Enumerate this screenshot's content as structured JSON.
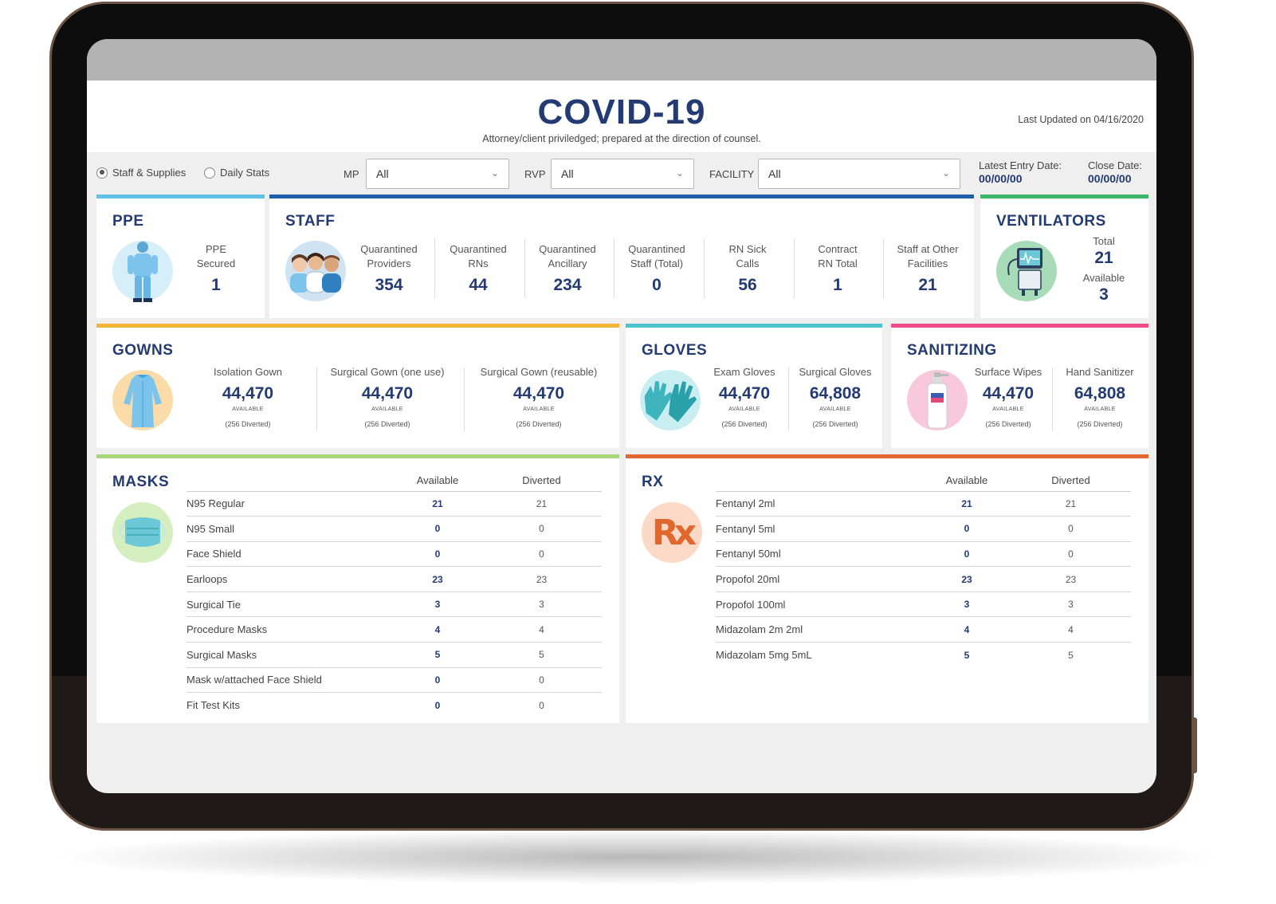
{
  "header": {
    "title": "COVID-19",
    "subtitle": "Attorney/client priviledged; prepared at the direction of counsel.",
    "last_updated": "Last Updated on 04/16/2020"
  },
  "filters": {
    "radio_staff": "Staff & Supplies",
    "radio_daily": "Daily Stats",
    "mp_label": "MP",
    "mp_value": "All",
    "rvp_label": "RVP",
    "rvp_value": "All",
    "facility_label": "FACILITY",
    "facility_value": "All",
    "latest_entry_label": "Latest Entry Date:",
    "latest_entry_value": "00/00/00",
    "close_label": "Close Date:",
    "close_value": "00/00/00"
  },
  "ppe": {
    "title": "PPE",
    "label1": "PPE",
    "label2": "Secured",
    "value": "1",
    "color": "#5fc0e8"
  },
  "staff": {
    "title": "STAFF",
    "color": "#1f5fae",
    "stats": [
      {
        "l1": "Quarantined",
        "l2": "Providers",
        "value": "354"
      },
      {
        "l1": "Quarantined",
        "l2": "RNs",
        "value": "44"
      },
      {
        "l1": "Quarantined",
        "l2": "Ancillary",
        "value": "234"
      },
      {
        "l1": "Quarantined",
        "l2": "Staff (Total)",
        "value": "0"
      },
      {
        "l1": "RN Sick",
        "l2": "Calls",
        "value": "56"
      },
      {
        "l1": "Contract",
        "l2": "RN Total",
        "value": "1"
      },
      {
        "l1": "Staff at Other",
        "l2": "Facilities",
        "value": "21"
      }
    ]
  },
  "ventilators": {
    "title": "VENTILATORS",
    "color": "#3fb56a",
    "total_label": "Total",
    "total_value": "21",
    "available_label": "Available",
    "available_value": "3"
  },
  "gowns": {
    "title": "GOWNS",
    "color": "#f2b535",
    "items": [
      {
        "label": "Isolation Gown",
        "value": "44,470",
        "available": "AVAILABLE",
        "diverted": "(256 Diverted)"
      },
      {
        "label": "Surgical Gown (one use)",
        "value": "44,470",
        "available": "AVAILABLE",
        "diverted": "(256 Diverted)"
      },
      {
        "label": "Surgical Gown (reusable)",
        "value": "44,470",
        "available": "AVAILABLE",
        "diverted": "(256 Diverted)"
      }
    ]
  },
  "gloves": {
    "title": "GLOVES",
    "color": "#4cc3cf",
    "items": [
      {
        "label": "Exam Gloves",
        "value": "44,470",
        "available": "AVAILABLE",
        "diverted": "(256 Diverted)"
      },
      {
        "label": "Surgical Gloves",
        "value": "64,808",
        "available": "AVAILABLE",
        "diverted": "(256 Diverted)"
      }
    ]
  },
  "sanitizing": {
    "title": "SANITIZING",
    "color": "#ec4d8b",
    "items": [
      {
        "label": "Surface Wipes",
        "value": "44,470",
        "available": "AVAILABLE",
        "diverted": "(256 Diverted)"
      },
      {
        "label": "Hand Sanitizer",
        "value": "64,808",
        "available": "AVAILABLE",
        "diverted": "(256 Diverted)"
      }
    ]
  },
  "masks": {
    "title": "MASKS",
    "color": "#a9d67a",
    "col_available": "Available",
    "col_diverted": "Diverted",
    "rows": [
      {
        "name": "N95 Regular",
        "available": "21",
        "diverted": "21"
      },
      {
        "name": "N95 Small",
        "available": "0",
        "diverted": "0"
      },
      {
        "name": "Face Shield",
        "available": "0",
        "diverted": "0"
      },
      {
        "name": "Earloops",
        "available": "23",
        "diverted": "23"
      },
      {
        "name": "Surgical Tie",
        "available": "3",
        "diverted": "3"
      },
      {
        "name": "Procedure Masks",
        "available": "4",
        "diverted": "4"
      },
      {
        "name": "Surgical Masks",
        "available": "5",
        "diverted": "5"
      },
      {
        "name": "Mask w/attached Face Shield",
        "available": "0",
        "diverted": "0"
      },
      {
        "name": "Fit Test Kits",
        "available": "0",
        "diverted": "0"
      }
    ]
  },
  "rx": {
    "title": "RX",
    "color": "#e0672d",
    "col_available": "Available",
    "col_diverted": "Diverted",
    "icon_text": "Rx",
    "rows": [
      {
        "name": "Fentanyl 2ml",
        "available": "21",
        "diverted": "21"
      },
      {
        "name": "Fentanyl 5ml",
        "available": "0",
        "diverted": "0"
      },
      {
        "name": "Fentanyl 50ml",
        "available": "0",
        "diverted": "0"
      },
      {
        "name": "Propofol 20ml",
        "available": "23",
        "diverted": "23"
      },
      {
        "name": "Propofol 100ml",
        "available": "3",
        "diverted": "3"
      },
      {
        "name": "Midazolam 2m 2ml",
        "available": "4",
        "diverted": "4"
      },
      {
        "name": "Midazolam 5mg 5mL",
        "available": "5",
        "diverted": "5"
      }
    ]
  }
}
